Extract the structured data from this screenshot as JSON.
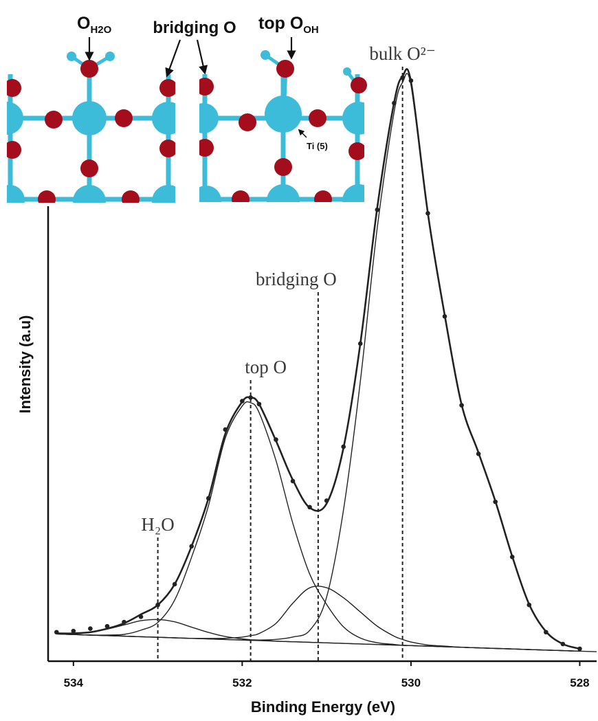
{
  "chart_data": {
    "type": "scatter",
    "xlabel": "Binding Energy (eV)",
    "ylabel": "Intensity (a.u)",
    "xlim": [
      534.3,
      527.8
    ],
    "ylim": [
      0,
      100
    ],
    "xticks": [
      534,
      532,
      530,
      528
    ],
    "color": "#222222",
    "x": [
      534.2,
      534.0,
      533.8,
      533.6,
      533.4,
      533.2,
      533.0,
      532.8,
      532.6,
      532.4,
      532.2,
      532.0,
      531.9,
      531.8,
      531.6,
      531.4,
      531.2,
      531.0,
      530.8,
      530.6,
      530.4,
      530.2,
      530.1,
      530.0,
      529.8,
      529.6,
      529.4,
      529.2,
      529.0,
      528.8,
      528.6,
      528.4,
      528.2,
      528.0
    ],
    "values": [
      4.9,
      5.1,
      5.5,
      5.9,
      6.6,
      7.5,
      9.5,
      13.0,
      19.4,
      27.5,
      39.1,
      43.9,
      44.5,
      43.4,
      37.4,
      30.4,
      26.0,
      27.1,
      36.2,
      53.6,
      76.2,
      94.2,
      98.5,
      98.0,
      75.6,
      58.2,
      43.2,
      35.0,
      26.9,
      17.6,
      9.5,
      4.9,
      2.9,
      2.1
    ],
    "fit": [
      4.7,
      4.7,
      4.9,
      5.5,
      6.4,
      7.9,
      9.5,
      13.0,
      19.4,
      27.5,
      38.4,
      43.8,
      44.5,
      43.4,
      37.2,
      30.6,
      25.9,
      26.6,
      36.0,
      53.6,
      76.5,
      94.3,
      98.7,
      97.8,
      75.6,
      58.4,
      43.3,
      35.2,
      27.0,
      17.7,
      9.6,
      5.0,
      2.9,
      2.1
    ],
    "background": {
      "x": [
        534.2,
        527.8
      ],
      "values": [
        4.6,
        1.6
      ]
    },
    "peaks": [
      {
        "label": "H₂O",
        "center": 533.0,
        "values": [
          0.1,
          0.2,
          0.5,
          1.1,
          1.9,
          2.7,
          3.0,
          2.7,
          1.9,
          1.1,
          0.5,
          0.2,
          0.1,
          0.1,
          0,
          0,
          0,
          0,
          0,
          0,
          0,
          0,
          0,
          0,
          0,
          0,
          0,
          0,
          0,
          0,
          0,
          0,
          0,
          0
        ]
      },
      {
        "label": "top O",
        "center": 531.9,
        "values": [
          0,
          0,
          0,
          0.1,
          0.3,
          1.1,
          2.5,
          6.4,
          13.7,
          22.5,
          34.0,
          39.5,
          40.1,
          38.5,
          30.5,
          20.0,
          11.5,
          6.5,
          2.8,
          1.0,
          0.3,
          0.1,
          0,
          0,
          0,
          0,
          0,
          0,
          0,
          0,
          0,
          0,
          0,
          0
        ]
      },
      {
        "label": "bridging O",
        "center": 531.1,
        "values": [
          0,
          0,
          0,
          0,
          0,
          0,
          0,
          0,
          0,
          0.1,
          0.2,
          0.5,
          0.8,
          1.2,
          3.0,
          6.5,
          9.2,
          9.3,
          7.7,
          5.4,
          3.1,
          1.5,
          1.0,
          0.6,
          0.2,
          0.1,
          0,
          0,
          0,
          0,
          0,
          0,
          0,
          0
        ]
      },
      {
        "label": "bulk O²⁻",
        "center": 530.1,
        "values": [
          0,
          0,
          0,
          0,
          0,
          0,
          0,
          0,
          0,
          0,
          0,
          0,
          0,
          0.1,
          0.3,
          0.8,
          2.0,
          7.7,
          22.5,
          44.3,
          70.3,
          90.0,
          95.0,
          94.6,
          72.9,
          55.9,
          41.0,
          32.9,
          24.8,
          15.6,
          7.6,
          3.1,
          1.1,
          0.4
        ]
      }
    ]
  },
  "insets": {
    "water": {
      "main": "O",
      "sub": "H2O"
    },
    "bridging": "bridging O",
    "top": {
      "main": "top O",
      "sub": "OH"
    },
    "ti": "Ti (5)"
  }
}
